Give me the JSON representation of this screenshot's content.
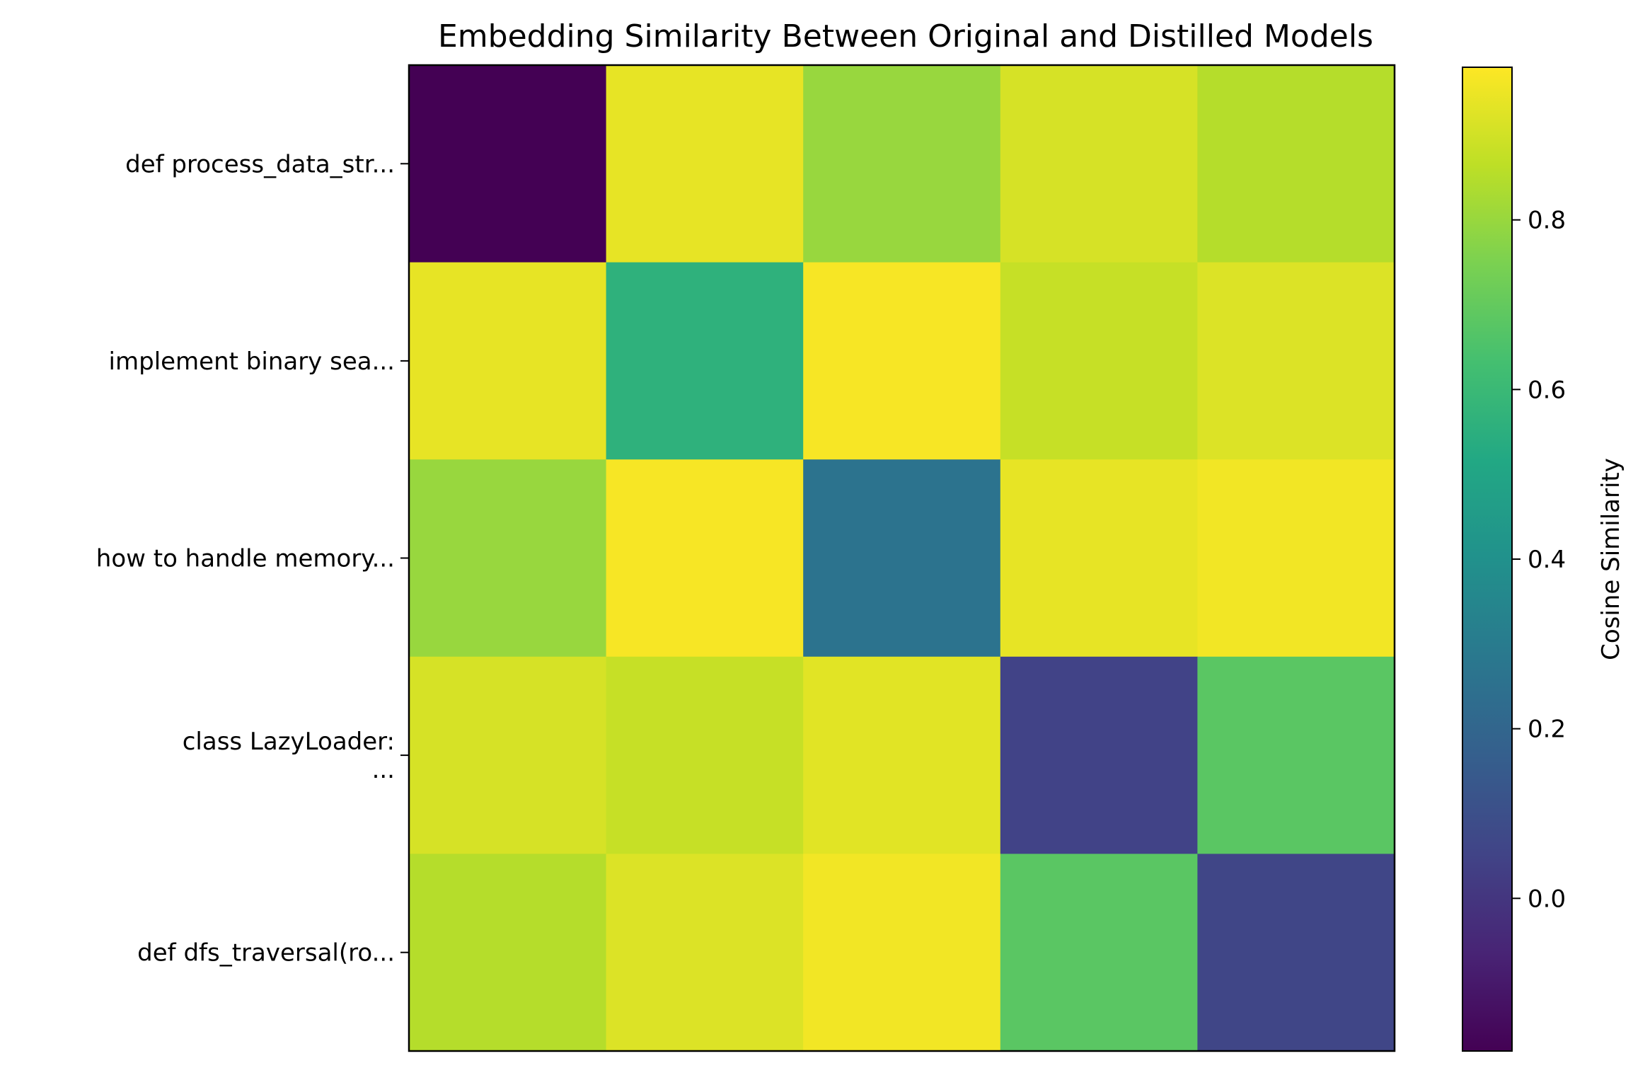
{
  "chart_data": {
    "type": "heatmap",
    "title": "Embedding Similarity Between Original and Distilled Models",
    "row_labels": [
      "def process_data_str...",
      "implement binary sea...",
      "how to handle memory...",
      "class LazyLoader:\n...",
      "def dfs_traversal(ro..."
    ],
    "column_labels": [],
    "values": [
      [
        -0.18,
        0.94,
        0.8,
        0.91,
        0.85
      ],
      [
        0.94,
        0.56,
        0.97,
        0.88,
        0.92
      ],
      [
        0.8,
        0.97,
        0.26,
        0.94,
        0.96
      ],
      [
        0.91,
        0.88,
        0.93,
        0.05,
        0.68
      ],
      [
        0.85,
        0.92,
        0.96,
        0.68,
        0.06
      ]
    ],
    "colormap": "viridis",
    "colorbar": {
      "label": "Cosine Similarity",
      "range": [
        -0.18,
        0.98
      ],
      "ticks": [
        0.0,
        0.2,
        0.4,
        0.6,
        0.8
      ],
      "tick_labels": [
        "0.0",
        "0.2",
        "0.4",
        "0.6",
        "0.8"
      ]
    }
  }
}
